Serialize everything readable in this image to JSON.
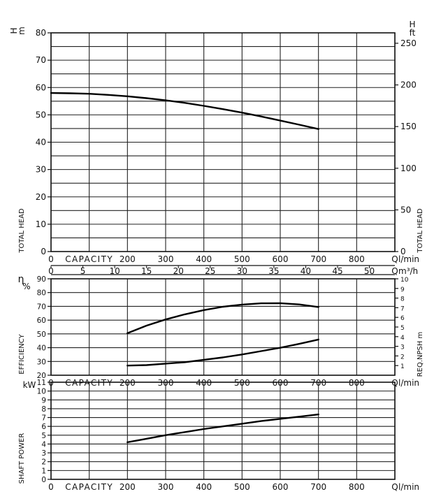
{
  "chart_data": [
    {
      "type": "line",
      "ylabel": "TOTAL HEAD",
      "ylabel_right": "TOTAL HEAD",
      "y_unit_left": "H m",
      "y_unit_right": "H ft",
      "xlabel": "CAPACITY",
      "x_unit": "Q l/min",
      "x_unit_secondary": "Q m³/h",
      "xlim": [
        0,
        900
      ],
      "ylim": [
        0,
        80
      ],
      "ylim_right": [
        0,
        262.5
      ],
      "x_ticks": [
        0,
        100,
        200,
        300,
        400,
        500,
        600,
        700,
        800,
        900
      ],
      "x_tick_labels": [
        "0",
        "",
        "200",
        "300",
        "400",
        "500",
        "600",
        "700",
        "800",
        "Q"
      ],
      "y_ticks": [
        0,
        10,
        20,
        30,
        40,
        50,
        60,
        70,
        80
      ],
      "y_ticks_right": [
        0,
        50,
        100,
        150,
        200,
        250
      ],
      "x_ticks_secondary": [
        0,
        5,
        10,
        15,
        20,
        25,
        30,
        35,
        40,
        45,
        50
      ],
      "grid": true,
      "series": [
        {
          "x": [
            0,
            50,
            100,
            150,
            200,
            250,
            300,
            350,
            400,
            450,
            500,
            550,
            600,
            650,
            700
          ],
          "y": [
            58,
            57.9,
            57.7,
            57.3,
            56.8,
            56.1,
            55.3,
            54.4,
            53.3,
            52.1,
            50.8,
            49.4,
            47.9,
            46.4,
            44.8
          ]
        }
      ]
    },
    {
      "type": "line",
      "ylabel": "EFFICIENCY",
      "ylabel_right": "REQ.NPSH m",
      "y_unit_left": "η %",
      "xlabel": "CAPACITY",
      "x_unit": "Q l/min",
      "xlim": [
        0,
        900
      ],
      "ylim": [
        20,
        90
      ],
      "ylim_right": [
        0,
        10
      ],
      "x_ticks": [
        0,
        100,
        200,
        300,
        400,
        500,
        600,
        700,
        800,
        900
      ],
      "x_tick_labels": [
        "0",
        "",
        "200",
        "300",
        "400",
        "500",
        "600",
        "700",
        "800",
        "Q"
      ],
      "y_ticks": [
        20,
        30,
        40,
        50,
        60,
        70,
        80,
        90
      ],
      "y_ticks_right": [
        1,
        2,
        3,
        4,
        5,
        6,
        7,
        8,
        9,
        10
      ],
      "grid": true,
      "series": [
        {
          "axis": "left",
          "x": [
            200,
            250,
            300,
            350,
            400,
            450,
            500,
            550,
            600,
            650,
            700
          ],
          "y": [
            50.5,
            56,
            60.5,
            64.2,
            67.3,
            69.7,
            71.3,
            72.2,
            72.3,
            71.4,
            69.5
          ]
        },
        {
          "axis": "right",
          "x": [
            200,
            250,
            300,
            350,
            400,
            450,
            500,
            550,
            600,
            650,
            700
          ],
          "y": [
            1.0,
            1.05,
            1.2,
            1.35,
            1.6,
            1.85,
            2.15,
            2.5,
            2.85,
            3.25,
            3.7
          ]
        }
      ]
    },
    {
      "type": "line",
      "ylabel": "SHAFT POWER",
      "y_unit_left": "kW",
      "xlabel": "CAPACITY",
      "x_unit": "Q l/min",
      "xlim": [
        0,
        900
      ],
      "ylim": [
        0,
        11
      ],
      "x_ticks": [
        0,
        100,
        200,
        300,
        400,
        500,
        600,
        700,
        800,
        900
      ],
      "x_tick_labels": [
        "0",
        "",
        "200",
        "300",
        "400",
        "500",
        "600",
        "700",
        "800",
        "Q"
      ],
      "y_ticks": [
        0,
        1,
        2,
        3,
        4,
        5,
        6,
        7,
        8,
        9,
        10,
        11
      ],
      "grid": true,
      "series": [
        {
          "x": [
            200,
            250,
            300,
            350,
            400,
            450,
            500,
            550,
            600,
            650,
            700
          ],
          "y": [
            4.2,
            4.6,
            5.0,
            5.35,
            5.7,
            6.0,
            6.3,
            6.6,
            6.85,
            7.1,
            7.35
          ]
        }
      ]
    }
  ]
}
